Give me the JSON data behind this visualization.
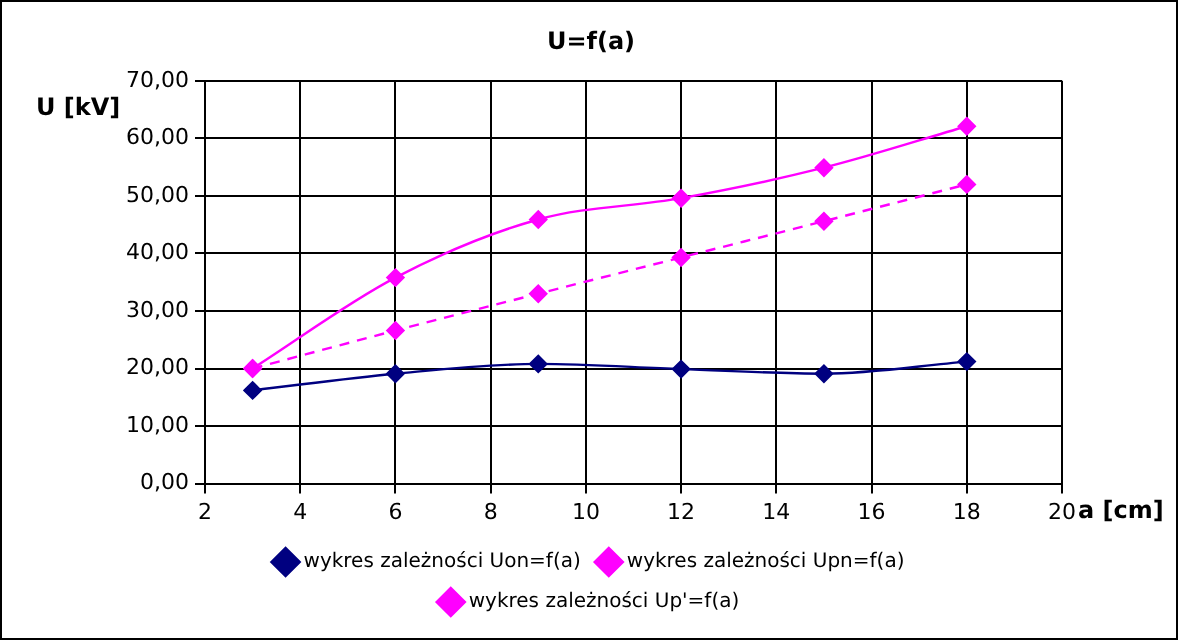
{
  "chart_data": {
    "type": "line",
    "title": "U=f(a)",
    "xlabel": "a [cm]",
    "ylabel": "U [kV]",
    "x": [
      3,
      6,
      9,
      12,
      15,
      18
    ],
    "series": [
      {
        "name": "wykres zależności Uon=f(a)",
        "color": "#000080",
        "values": [
          16.2,
          19.1,
          20.8,
          19.9,
          19.1,
          21.2
        ],
        "line_style": "solid"
      },
      {
        "name": "wykres zależności Upn=f(a)",
        "color": "#ff00ff",
        "values": [
          20.0,
          35.8,
          45.9,
          49.6,
          54.9,
          62.1
        ],
        "line_style": "solid"
      },
      {
        "name": "wykres zależności Up'=f(a)",
        "color": "#ff00ff",
        "values": [
          20.0,
          26.6,
          33.0,
          39.3,
          45.6,
          52.0
        ],
        "line_style": "dashed"
      }
    ],
    "xlim": [
      2,
      20
    ],
    "xticks": [
      2,
      4,
      6,
      8,
      10,
      12,
      14,
      16,
      18,
      20
    ],
    "ylim": [
      0,
      70
    ],
    "yticks": [
      {
        "value": 0,
        "label": "0,00"
      },
      {
        "value": 10,
        "label": "10,00"
      },
      {
        "value": 20,
        "label": "20,00"
      },
      {
        "value": 30,
        "label": "30,00"
      },
      {
        "value": 40,
        "label": "40,00"
      },
      {
        "value": 50,
        "label": "50,00"
      },
      {
        "value": 60,
        "label": "60,00"
      },
      {
        "value": 70,
        "label": "70,00"
      }
    ],
    "grid": true,
    "legend": "bottom",
    "marker": "diamond"
  }
}
